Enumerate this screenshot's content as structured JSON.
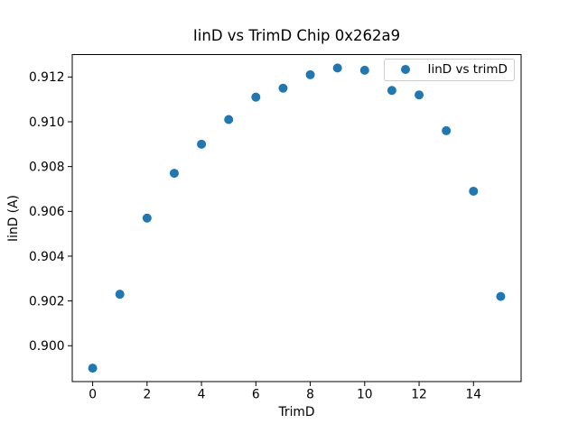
{
  "accent_color": "#1f77b4",
  "chart_data": {
    "type": "scatter",
    "title": "IinD vs TrimD Chip 0x262a9",
    "xlabel": "TrimD",
    "ylabel": "IinD (A)",
    "legend": [
      {
        "label": "IinD vs trimD",
        "marker": "circle-icon",
        "color": "#1f77b4"
      }
    ],
    "legend_position": "upper right",
    "grid": false,
    "marker_color": "#1f77b4",
    "marker_radius_px": 5,
    "x": [
      0,
      1,
      2,
      3,
      4,
      5,
      6,
      7,
      8,
      9,
      10,
      11,
      12,
      13,
      14,
      15
    ],
    "y": [
      0.899,
      0.9023,
      0.9057,
      0.9077,
      0.909,
      0.9101,
      0.9111,
      0.9115,
      0.9121,
      0.9124,
      0.9123,
      0.9114,
      0.9112,
      0.9096,
      0.9069,
      0.9022
    ],
    "xlim": [
      -0.75,
      15.75
    ],
    "ylim": [
      0.8984,
      0.913
    ],
    "xticks": {
      "values": [
        0,
        2,
        4,
        6,
        8,
        10,
        12,
        14
      ],
      "labels": [
        "0",
        "2",
        "4",
        "6",
        "8",
        "10",
        "12",
        "14"
      ]
    },
    "yticks": {
      "values": [
        0.9,
        0.902,
        0.904,
        0.906,
        0.908,
        0.91,
        0.912
      ],
      "labels": [
        "0.900",
        "0.902",
        "0.904",
        "0.906",
        "0.908",
        "0.910",
        "0.912"
      ]
    }
  }
}
